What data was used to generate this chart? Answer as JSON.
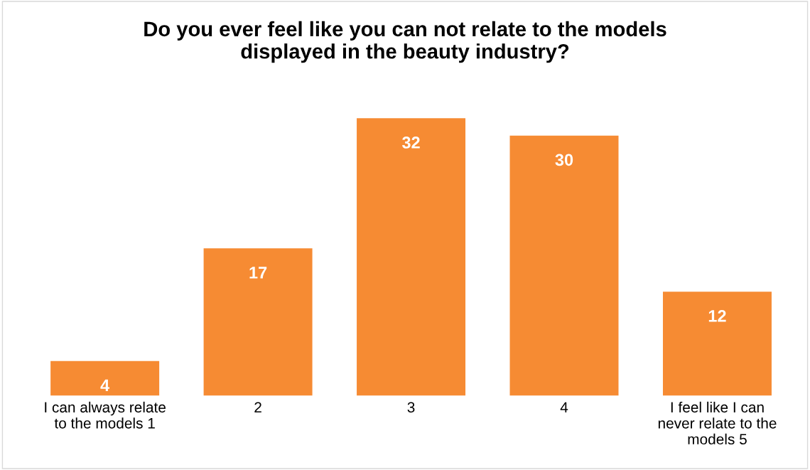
{
  "chart_data": {
    "type": "bar",
    "title": "Do you ever feel like you can not relate to the models\ndisplayed in the beauty industry?",
    "categories": [
      "I can always relate\nto the models 1",
      "2",
      "3",
      "4",
      "I feel like I can\nnever relate to the\nmodels 5"
    ],
    "values": [
      4,
      17,
      32,
      30,
      12
    ],
    "color": "#f68b33",
    "data_labels": true,
    "grid": false,
    "legend": false
  }
}
